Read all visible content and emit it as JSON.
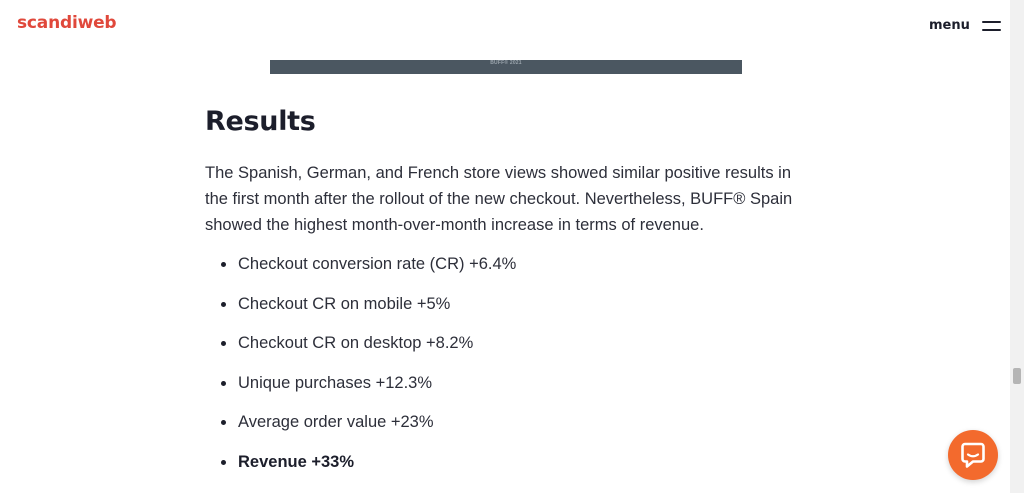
{
  "header": {
    "logo": "scandiweb",
    "menu_label": "menu"
  },
  "image": {
    "caption": "BUFF® 2021"
  },
  "article": {
    "heading": "Results",
    "paragraph": "The Spanish, German, and French store views showed similar positive results in the first month after the rollout of the new checkout. Nevertheless, BUFF® Spain showed the highest month-over-month increase in terms of revenue.",
    "bullets": [
      "Checkout conversion rate (CR) +6.4%",
      "Checkout CR on mobile +5%",
      "Checkout CR on desktop +8.2%",
      "Unique purchases +12.3%",
      "Average order value +23%",
      "Revenue +33%"
    ]
  },
  "icons": {
    "menu": "hamburger-icon",
    "chat": "chat-bubble-icon"
  },
  "colors": {
    "brand": "#e0483b",
    "chat": "#f36a2d",
    "text": "#2d2f3a",
    "heading": "#1c1e2b",
    "image_strip": "#4b5761"
  }
}
